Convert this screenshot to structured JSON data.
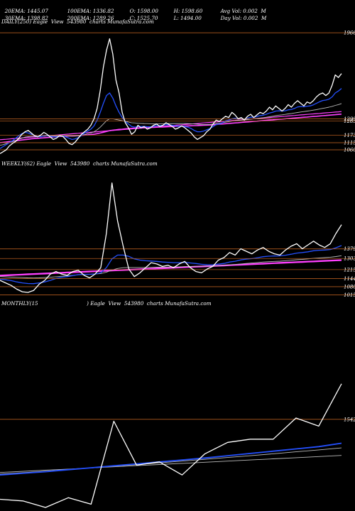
{
  "header": {
    "line1": [
      {
        "text": "20EMA: 1445.07"
      },
      {
        "text": "100EMA: 1336.82"
      },
      {
        "text": "O: 1598.00"
      },
      {
        "text": "H: 1598.60"
      },
      {
        "text": "Avg Vol: 0.002  M"
      }
    ],
    "line2": [
      {
        "text": "30EMA: 1398.82"
      },
      {
        "text": "200EMA: 1289.26"
      },
      {
        "text": "C: 1525.70"
      },
      {
        "text": "L: 1494.00"
      },
      {
        "text": "Day Vol: 0.002  M"
      }
    ]
  },
  "panels": [
    {
      "caption": "DAILY(250) Eagle  View  543980  charts MunafaSutra.com"
    },
    {
      "caption": "WEEKLY(62) Eagle  View  543980  charts MunafaSutra.com"
    },
    {
      "caption": "MONTHLY(15                              ) Eagle  View  543980  charts MunafaSutra.com"
    }
  ],
  "colors": {
    "background": "#000000",
    "level_line": "#b05a1e",
    "price": "#ffffff",
    "ema_short": "#2450ff",
    "ema_long": "#ff40ff",
    "ema_grey": "#bbbbbb"
  },
  "chart_data": [
    {
      "type": "line",
      "title": "DAILY(250) Eagle  View  543980  charts MunafaSutra.com",
      "ylim": [
        1000,
        2000
      ],
      "levels": [
        1966,
        1299,
        1283,
        1173,
        1115,
        1060
      ],
      "series": [
        {
          "values": [
            1030,
            1045,
            1060,
            1090,
            1110,
            1125,
            1150,
            1180,
            1200,
            1210,
            1190,
            1170,
            1160,
            1175,
            1195,
            1180,
            1160,
            1140,
            1150,
            1170,
            1165,
            1140,
            1110,
            1100,
            1120,
            1150,
            1180,
            1200,
            1220,
            1250,
            1300,
            1380,
            1520,
            1700,
            1830,
            1920,
            1800,
            1600,
            1500,
            1350,
            1270,
            1230,
            1180,
            1200,
            1250,
            1230,
            1240,
            1220,
            1230,
            1250,
            1260,
            1240,
            1250,
            1270,
            1255,
            1240,
            1220,
            1230,
            1245,
            1230,
            1210,
            1190,
            1160,
            1140,
            1155,
            1170,
            1200,
            1220,
            1260,
            1290,
            1280,
            1300,
            1320,
            1310,
            1350,
            1330,
            1300,
            1310,
            1290,
            1320,
            1335,
            1310,
            1330,
            1350,
            1340,
            1360,
            1390,
            1370,
            1400,
            1380,
            1360,
            1380,
            1410,
            1390,
            1420,
            1440,
            1420,
            1400,
            1430,
            1420,
            1440,
            1470,
            1490,
            1500,
            1480,
            1500,
            1560,
            1640,
            1620,
            1650
          ]
        },
        {
          "values": [
            1070,
            1085,
            1100,
            1115,
            1130,
            1150,
            1170,
            1185,
            1195,
            1190,
            1180,
            1170,
            1165,
            1160,
            1170,
            1172,
            1165,
            1160,
            1160,
            1165,
            1170,
            1160,
            1150,
            1140,
            1145,
            1155,
            1170,
            1190,
            1205,
            1220,
            1245,
            1290,
            1350,
            1420,
            1480,
            1500,
            1460,
            1400,
            1350,
            1310,
            1280,
            1260,
            1240,
            1235,
            1240,
            1240,
            1242,
            1238,
            1238,
            1242,
            1248,
            1248,
            1250,
            1255,
            1254,
            1250,
            1245,
            1242,
            1244,
            1240,
            1235,
            1225,
            1210,
            1200,
            1200,
            1205,
            1215,
            1225,
            1240,
            1255,
            1260,
            1270,
            1285,
            1290,
            1300,
            1305,
            1300,
            1302,
            1298,
            1305,
            1312,
            1312,
            1318,
            1325,
            1328,
            1335,
            1345,
            1350,
            1360,
            1362,
            1360,
            1362,
            1370,
            1372,
            1380,
            1392,
            1395,
            1393,
            1398,
            1400,
            1408,
            1420,
            1432,
            1442,
            1445,
            1452,
            1470,
            1500,
            1515,
            1535
          ]
        },
        {
          "values": [
            1095,
            1100,
            1108,
            1116,
            1124,
            1132,
            1142,
            1150,
            1158,
            1162,
            1164,
            1164,
            1164,
            1164,
            1166,
            1168,
            1168,
            1168,
            1168,
            1170,
            1172,
            1170,
            1168,
            1166,
            1166,
            1168,
            1172,
            1178,
            1184,
            1190,
            1200,
            1215,
            1235,
            1260,
            1285,
            1300,
            1300,
            1295,
            1290,
            1285,
            1280,
            1275,
            1270,
            1268,
            1266,
            1265,
            1264,
            1263,
            1262,
            1262,
            1262,
            1262,
            1262,
            1263,
            1264,
            1264,
            1264,
            1264,
            1264,
            1264,
            1263,
            1262,
            1260,
            1258,
            1256,
            1256,
            1256,
            1257,
            1260,
            1263,
            1266,
            1270,
            1274,
            1278,
            1282,
            1286,
            1288,
            1290,
            1292,
            1294,
            1297,
            1300,
            1303,
            1306,
            1309,
            1312,
            1316,
            1320,
            1324,
            1328,
            1331,
            1334,
            1338,
            1341,
            1345,
            1349,
            1353,
            1356,
            1360,
            1363,
            1367,
            1371,
            1376,
            1381,
            1385,
            1390,
            1396,
            1404,
            1410,
            1418
          ]
        },
        {
          "values": [
            1115,
            1118,
            1121,
            1124,
            1127,
            1130,
            1133,
            1136,
            1139,
            1142,
            1145,
            1147,
            1149,
            1151,
            1153,
            1155,
            1157,
            1159,
            1161,
            1163,
            1165,
            1166,
            1167,
            1168,
            1169,
            1170,
            1172,
            1174,
            1176,
            1178,
            1181,
            1185,
            1190,
            1196,
            1202,
            1208,
            1212,
            1215,
            1218,
            1220,
            1222,
            1224,
            1226,
            1228,
            1229,
            1230,
            1231,
            1232,
            1233,
            1234,
            1235,
            1236,
            1237,
            1238,
            1239,
            1240,
            1241,
            1242,
            1243,
            1244,
            1245,
            1246,
            1247,
            1248,
            1249,
            1250,
            1251,
            1252,
            1254,
            1256,
            1258,
            1260,
            1262,
            1264,
            1266,
            1268,
            1270,
            1272,
            1274,
            1276,
            1278,
            1280,
            1282,
            1284,
            1286,
            1288,
            1290,
            1292,
            1294,
            1296,
            1298,
            1300,
            1302,
            1304,
            1306,
            1308,
            1310,
            1312,
            1314,
            1316,
            1318,
            1320,
            1322,
            1324,
            1326,
            1328,
            1330,
            1332,
            1334,
            1336
          ]
        },
        {
          "values": [
            1138,
            1140,
            1142,
            1144,
            1146,
            1148,
            1150,
            1152,
            1154,
            1156,
            1158,
            1160,
            1162,
            1164,
            1166,
            1168,
            1170,
            1172,
            1174,
            1176,
            1178,
            1180,
            1182,
            1184,
            1186,
            1188,
            1190,
            1192,
            1194,
            1196,
            1198,
            1200,
            1202,
            1204,
            1206,
            1208,
            1210,
            1212,
            1214,
            1216,
            1218,
            1220,
            1222,
            1224,
            1226,
            1228,
            1230,
            1232,
            1234,
            1236,
            1238,
            1240,
            1242,
            1244,
            1246,
            1248,
            1250,
            1252,
            1254,
            1256,
            1258,
            1260,
            1262,
            1264,
            1266,
            1268,
            1270,
            1272,
            1274,
            1276,
            1278,
            1280,
            1282,
            1284,
            1286,
            1288,
            1290,
            1292,
            1294,
            1296,
            1298,
            1300,
            1302,
            1304,
            1306,
            1308,
            1310,
            1312,
            1314,
            1316,
            1318,
            1320,
            1322,
            1324,
            1326,
            1328,
            1330,
            1332,
            1334,
            1336,
            1338,
            1340,
            1342,
            1344,
            1346,
            1348,
            1350,
            1352,
            1354,
            1356
          ]
        }
      ]
    },
    {
      "type": "line",
      "title": "WEEKLY(62) Eagle  View  543980  charts MunafaSutra.com",
      "ylim": [
        990,
        2000
      ],
      "levels": [
        1379,
        1303,
        1215,
        1144,
        1080,
        1015
      ],
      "series": [
        {
          "values": [
            1130,
            1110,
            1090,
            1060,
            1040,
            1035,
            1050,
            1100,
            1130,
            1180,
            1200,
            1180,
            1170,
            1200,
            1210,
            1170,
            1150,
            1180,
            1230,
            1500,
            1900,
            1600,
            1400,
            1220,
            1160,
            1190,
            1230,
            1270,
            1260,
            1240,
            1250,
            1230,
            1260,
            1280,
            1230,
            1200,
            1190,
            1220,
            1240,
            1290,
            1310,
            1350,
            1330,
            1380,
            1360,
            1340,
            1370,
            1390,
            1360,
            1340,
            1330,
            1370,
            1400,
            1420,
            1380,
            1410,
            1440,
            1410,
            1390,
            1420,
            1500,
            1570
          ]
        },
        {
          "values": [
            1140,
            1135,
            1128,
            1118,
            1110,
            1105,
            1104,
            1110,
            1118,
            1130,
            1145,
            1155,
            1160,
            1168,
            1176,
            1178,
            1178,
            1180,
            1190,
            1230,
            1300,
            1330,
            1330,
            1320,
            1300,
            1290,
            1285,
            1283,
            1280,
            1275,
            1273,
            1270,
            1270,
            1272,
            1268,
            1263,
            1257,
            1254,
            1253,
            1258,
            1264,
            1275,
            1281,
            1292,
            1298,
            1302,
            1309,
            1317,
            1321,
            1323,
            1324,
            1329,
            1337,
            1346,
            1350,
            1356,
            1364,
            1368,
            1370,
            1374,
            1388,
            1405
          ]
        },
        {
          "values": [
            1160,
            1158,
            1156,
            1154,
            1152,
            1150,
            1149,
            1150,
            1152,
            1155,
            1159,
            1163,
            1166,
            1170,
            1174,
            1176,
            1178,
            1180,
            1184,
            1194,
            1212,
            1224,
            1230,
            1232,
            1232,
            1232,
            1232,
            1233,
            1234,
            1234,
            1235,
            1236,
            1237,
            1239,
            1240,
            1241,
            1242,
            1243,
            1244,
            1246,
            1249,
            1253,
            1256,
            1260,
            1264,
            1267,
            1271,
            1275,
            1278,
            1280,
            1282,
            1285,
            1289,
            1293,
            1296,
            1300,
            1304,
            1307,
            1310,
            1313,
            1318,
            1325
          ]
        },
        {
          "values": [
            1170,
            1172,
            1174,
            1176,
            1178,
            1180,
            1182,
            1184,
            1186,
            1188,
            1190,
            1192,
            1194,
            1196,
            1198,
            1200,
            1202,
            1204,
            1206,
            1208,
            1210,
            1212,
            1214,
            1216,
            1218,
            1220,
            1222,
            1224,
            1226,
            1228,
            1230,
            1232,
            1234,
            1236,
            1238,
            1240,
            1242,
            1244,
            1246,
            1248,
            1250,
            1252,
            1254,
            1256,
            1258,
            1260,
            1262,
            1264,
            1266,
            1268,
            1270,
            1272,
            1274,
            1276,
            1278,
            1280,
            1282,
            1284,
            1286,
            1288,
            1290,
            1292
          ]
        },
        {
          "values": [
            1165,
            1167,
            1169,
            1171,
            1173,
            1175,
            1177,
            1179,
            1181,
            1183,
            1185,
            1187,
            1189,
            1191,
            1193,
            1195,
            1197,
            1199,
            1201,
            1203,
            1205,
            1207,
            1209,
            1211,
            1213,
            1215,
            1217,
            1219,
            1221,
            1223,
            1225,
            1227,
            1229,
            1231,
            1233,
            1235,
            1237,
            1239,
            1241,
            1243,
            1245,
            1247,
            1249,
            1251,
            1253,
            1255,
            1257,
            1259,
            1261,
            1263,
            1265,
            1267,
            1269,
            1271,
            1273,
            1275,
            1277,
            1279,
            1281,
            1283,
            1285,
            1287
          ]
        }
      ]
    },
    {
      "type": "line",
      "title": "MONTHLY(15                              ) Eagle  View  543980  charts MunafaSutra.com",
      "ylim": [
        1000,
        2200
      ],
      "levels": [
        1542
      ],
      "series": [
        {
          "values": [
            1050,
            1040,
            1000,
            1060,
            1020,
            1530,
            1260,
            1280,
            1200,
            1330,
            1400,
            1420,
            1420,
            1550,
            1500,
            1760
          ]
        },
        {
          "values": [
            1200,
            1210,
            1220,
            1232,
            1244,
            1256,
            1268,
            1280,
            1292,
            1304,
            1318,
            1332,
            1346,
            1360,
            1374,
            1395
          ]
        },
        {
          "values": [
            1205,
            1214,
            1223,
            1233,
            1243,
            1253,
            1263,
            1274,
            1285,
            1296,
            1307,
            1318,
            1330,
            1342,
            1354,
            1366
          ]
        },
        {
          "values": [
            1215,
            1222,
            1229,
            1236,
            1243,
            1250,
            1257,
            1264,
            1271,
            1278,
            1285,
            1292,
            1299,
            1306,
            1313,
            1320
          ]
        }
      ]
    }
  ]
}
